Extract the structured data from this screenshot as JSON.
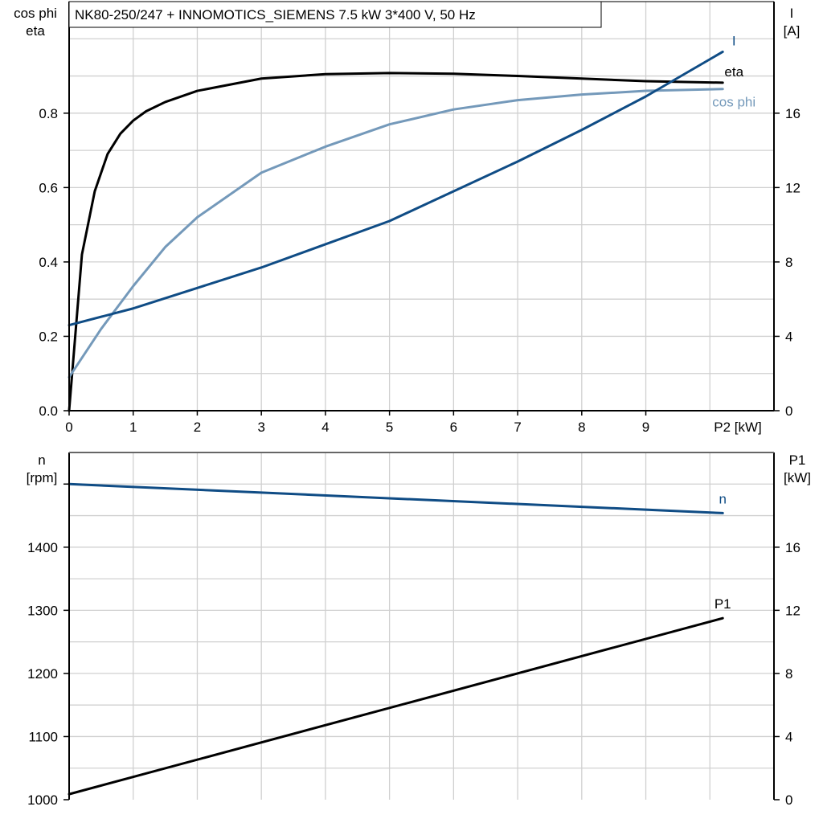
{
  "title": "NK80-250/247 + INNOMOTICS_SIEMENS   7.5 kW   3*400 V, 50 Hz",
  "colors": {
    "eta": "#000000",
    "cos_phi": "#7499ba",
    "I": "#0f4c85",
    "n": "#0f4c85",
    "P1": "#000000",
    "grid": "#d0d0d0"
  },
  "chart_data": [
    {
      "type": "line",
      "title": "NK80-250/247 + INNOMOTICS_SIEMENS   7.5 kW   3*400 V, 50 Hz",
      "xlabel": "P2 [kW]",
      "ylabel_left": [
        "cos phi",
        "eta"
      ],
      "ylabel_right": [
        "I",
        "[A]"
      ],
      "xlim": [
        0,
        11
      ],
      "ylim_left": [
        0,
        1.1
      ],
      "ylim_right": [
        0,
        22
      ],
      "x_ticks": [
        "0",
        "1",
        "2",
        "3",
        "4",
        "5",
        "6",
        "7",
        "8",
        "9"
      ],
      "y_left_ticks": [
        "0.0",
        "0.2",
        "0.4",
        "0.6",
        "0.8"
      ],
      "y_right_ticks": [
        "0",
        "4",
        "8",
        "12",
        "16"
      ],
      "grid": true,
      "series": [
        {
          "name": "eta",
          "axis": "left",
          "x": [
            0,
            0.2,
            0.4,
            0.6,
            0.8,
            1,
            1.2,
            1.5,
            2,
            3,
            4,
            5,
            6,
            7,
            8,
            9,
            10.2
          ],
          "y": [
            0,
            0.42,
            0.59,
            0.69,
            0.745,
            0.78,
            0.805,
            0.83,
            0.86,
            0.893,
            0.905,
            0.908,
            0.906,
            0.9,
            0.893,
            0.886,
            0.882
          ]
        },
        {
          "name": "cos phi",
          "axis": "left",
          "x": [
            0,
            0.5,
            1,
            1.5,
            2,
            3,
            4,
            5,
            6,
            7,
            8,
            9,
            10.2
          ],
          "y": [
            0.09,
            0.22,
            0.335,
            0.44,
            0.52,
            0.64,
            0.71,
            0.77,
            0.81,
            0.835,
            0.85,
            0.86,
            0.865
          ]
        },
        {
          "name": "I",
          "axis": "right",
          "x": [
            0,
            1,
            2,
            3,
            4,
            5,
            6,
            7,
            8,
            9,
            10.2
          ],
          "y": [
            4.6,
            5.5,
            6.6,
            7.7,
            8.95,
            10.2,
            11.8,
            13.4,
            15.1,
            16.9,
            19.3
          ]
        }
      ]
    },
    {
      "type": "line",
      "ylabel_left": [
        "n",
        "[rpm]"
      ],
      "ylabel_right": [
        "P1",
        "[kW]"
      ],
      "xlim": [
        0,
        11
      ],
      "ylim_left": [
        1000,
        1550
      ],
      "ylim_right": [
        0,
        22
      ],
      "y_left_ticks": [
        "1000",
        "1100",
        "1200",
        "1300",
        "1400"
      ],
      "y_right_ticks": [
        "0",
        "4",
        "8",
        "12",
        "16"
      ],
      "grid": true,
      "series": [
        {
          "name": "n",
          "axis": "left",
          "x": [
            0,
            10.2
          ],
          "y": [
            1500,
            1454
          ]
        },
        {
          "name": "P1",
          "axis": "right",
          "x": [
            0,
            10.2
          ],
          "y": [
            0.35,
            11.5
          ]
        }
      ]
    }
  ]
}
